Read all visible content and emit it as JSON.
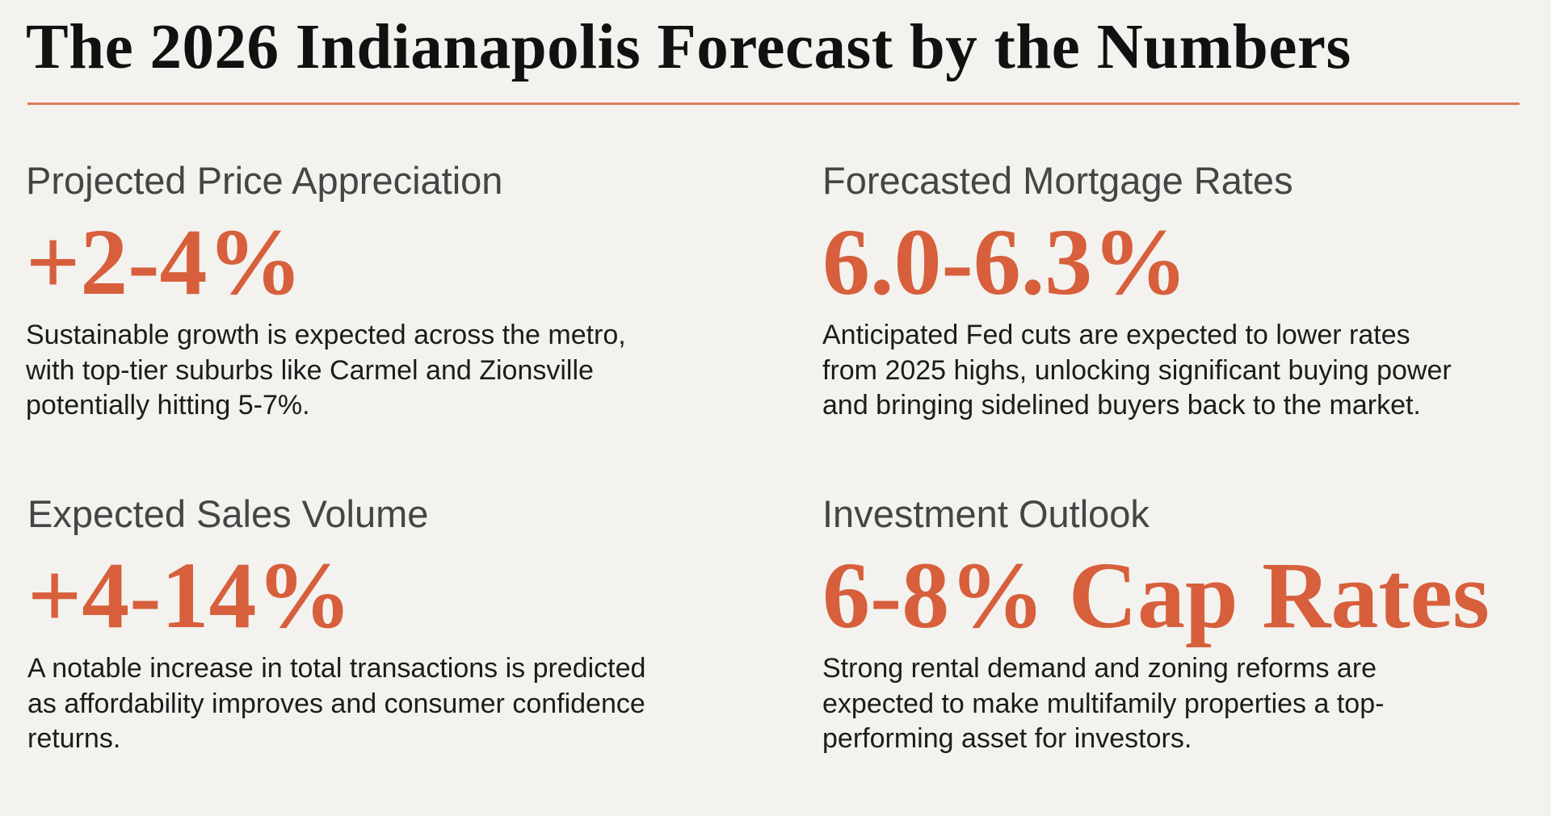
{
  "title": "The 2026 Indianapolis Forecast by the Numbers",
  "colors": {
    "accent": "#d75f3c",
    "background": "#f3f2ee",
    "heading": "#454545"
  },
  "cards": [
    {
      "heading": "Projected Price Appreciation",
      "value": "+2-4%",
      "lines": [
        "Sustainable growth is expected across the metro,",
        "with top-tier suburbs like Carmel and Zionsville",
        "potentially hitting 5-7%."
      ]
    },
    {
      "heading": "Forecasted Mortgage Rates",
      "value": "6.0-6.3%",
      "lines": [
        "Anticipated Fed cuts are expected to lower rates",
        "from 2025 highs, unlocking significant buying power",
        "and bringing sidelined buyers back to the market."
      ]
    },
    {
      "heading": "Expected Sales Volume",
      "value": "+4-14%",
      "lines": [
        "A notable increase in total transactions is predicted",
        "as affordability improves and consumer confidence",
        "returns."
      ]
    },
    {
      "heading": "Investment Outlook",
      "value": "6-8% Cap Rates",
      "lines": [
        "Strong rental demand and zoning reforms are",
        "expected to make multifamily properties a top-",
        "performing asset for investors."
      ]
    }
  ]
}
